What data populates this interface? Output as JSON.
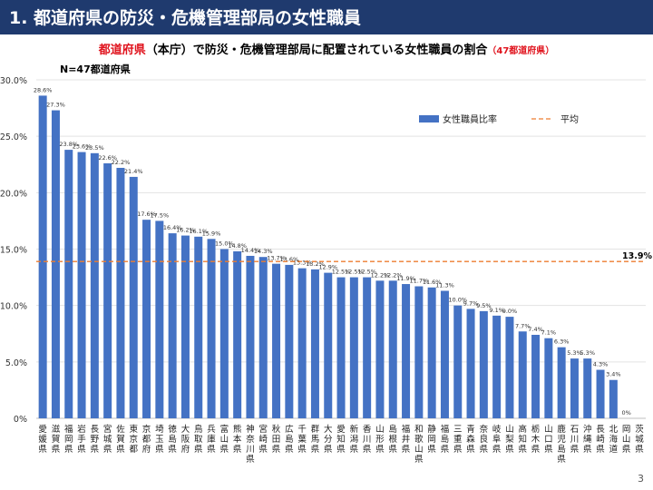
{
  "header": {
    "title": "1.  都道府県の防災・危機管理部局の女性職員"
  },
  "subtitle": {
    "part1": "都道府県",
    "part2": "（本庁）で防災・危機管理部局に配置されている女性職員の割合",
    "part3": "（47都道府県）"
  },
  "n_label": "N=47都道府県",
  "page_number": "3",
  "colors": {
    "bar": "#4472c4",
    "average": "#ed7d31",
    "header": "#1f3a6e",
    "accent_red": "#e0141e"
  },
  "chart_data": {
    "type": "bar",
    "categories": [
      "愛媛県",
      "滋賀県",
      "福岡県",
      "岩手県",
      "長野県",
      "宮城県",
      "佐賀県",
      "東京都",
      "京都府",
      "埼玉県",
      "徳島県",
      "大阪府",
      "鳥取県",
      "兵庫県",
      "富山県",
      "熊本県",
      "神奈川県",
      "宮崎県",
      "秋田県",
      "広島県",
      "千葉県",
      "群馬県",
      "大分県",
      "愛知県",
      "新潟県",
      "香川県",
      "山形県",
      "島根県",
      "福井県",
      "和歌山県",
      "静岡県",
      "福島県",
      "三重県",
      "青森県",
      "奈良県",
      "岐阜県",
      "山梨県",
      "高知県",
      "栃木県",
      "山口県",
      "鹿児島県",
      "石川県",
      "沖縄県",
      "長崎県",
      "北海道",
      "岡山県",
      "茨城県"
    ],
    "series": [
      {
        "name": "女性職員比率",
        "values": [
          28.6,
          27.3,
          23.8,
          23.6,
          23.5,
          22.6,
          22.2,
          21.4,
          17.6,
          17.5,
          16.4,
          16.2,
          16.1,
          15.9,
          15.0,
          14.8,
          14.4,
          14.3,
          13.7,
          13.6,
          13.3,
          13.2,
          12.9,
          12.5,
          12.5,
          12.5,
          12.2,
          12.2,
          11.9,
          11.7,
          11.6,
          11.3,
          10.0,
          9.7,
          9.5,
          9.1,
          9.0,
          7.7,
          7.4,
          7.1,
          6.3,
          5.3,
          5.3,
          4.3,
          3.4,
          0,
          0
        ],
        "labels": [
          "28.6%",
          "27.3%",
          "23.8%",
          "23.6%",
          "23.5%",
          "22.6%",
          "22.2%",
          "21.4%",
          "17.6%",
          "17.5%",
          "16.4%",
          "16.2%",
          "16.1%",
          "15.9%",
          "15.0%",
          "14.8%",
          "14.4%",
          "14.3%",
          "13.7%",
          "13.6%",
          "13.3%",
          "13.2%",
          "12.9%",
          "12.5%",
          "12.5%",
          "12.5%",
          "12.2%",
          "12.2%",
          "11.9%",
          "11.7%",
          "11.6%",
          "11.3%",
          "10.0%",
          "9.7%",
          "9.5%",
          "9.1%",
          "9.0%",
          "7.7%",
          "7.4%",
          "7.1%",
          "6.3%",
          "5.3%",
          "5.3%",
          "4.3%",
          "3.4%",
          "0%",
          ""
        ]
      }
    ],
    "average": {
      "name": "平均",
      "value": 13.9,
      "label": "13.9%"
    },
    "yticks": [
      "0%",
      "5.0%",
      "10.0%",
      "15.0%",
      "20.0%",
      "25.0%",
      "30.0%"
    ],
    "ylim": [
      0,
      30
    ],
    "grid": true,
    "legend": "top-right"
  }
}
